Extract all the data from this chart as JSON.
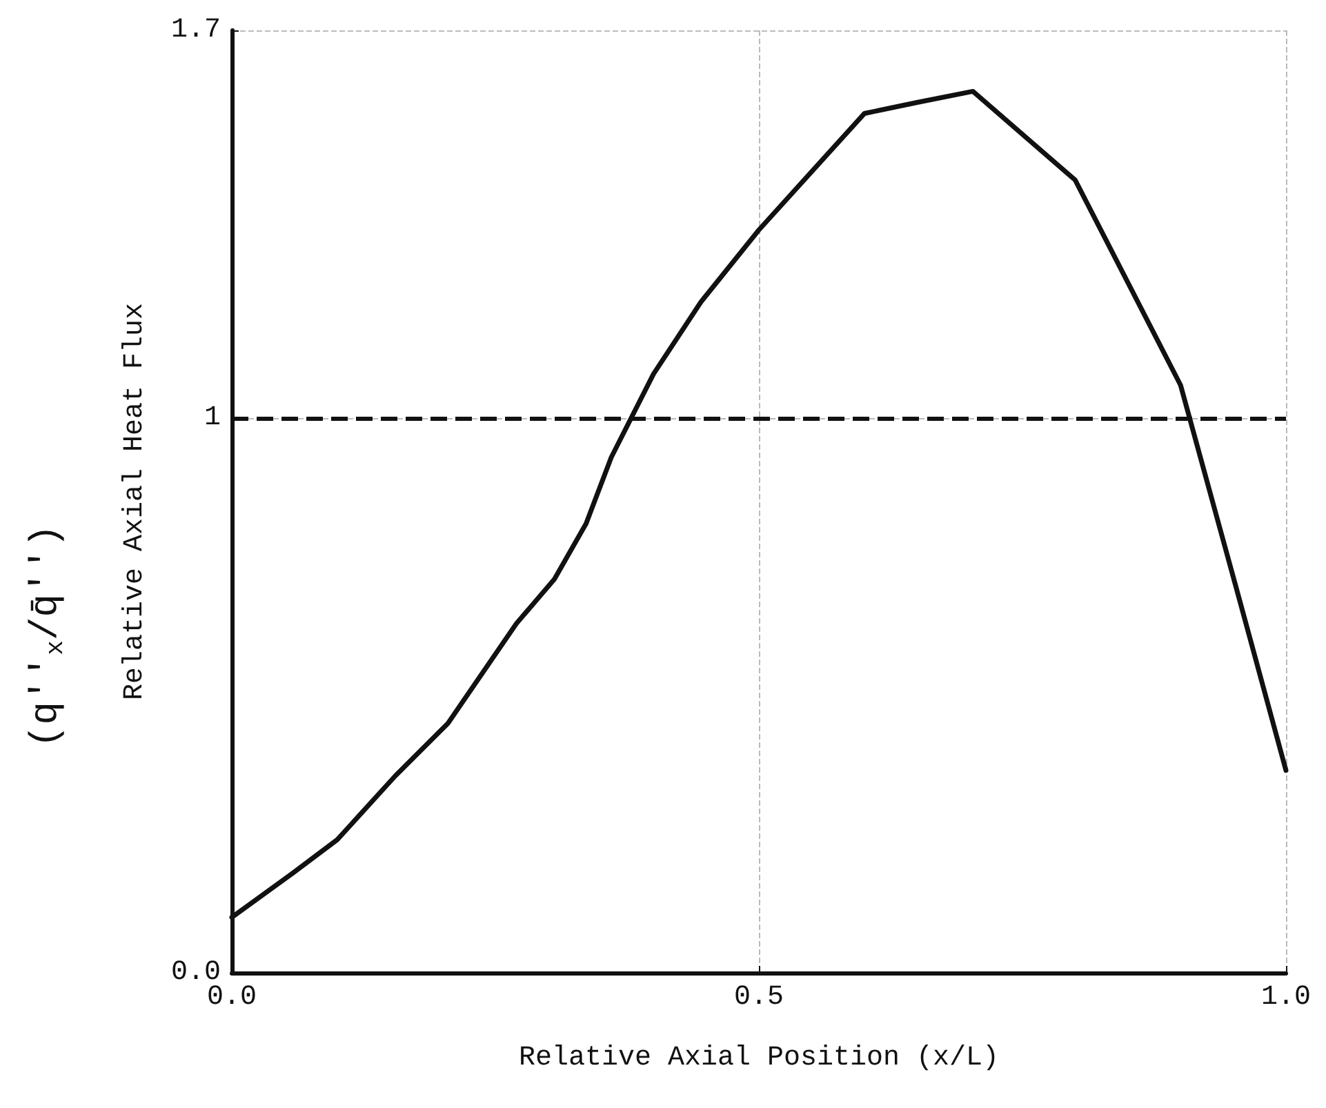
{
  "chart_data": {
    "type": "line",
    "xlabel": "Relative Axial Position (x/L)",
    "ylabel": "Relative Axial Heat Flux",
    "annotations": [
      "(q''$_{x}$/q̄'')"
    ],
    "x": [
      0,
      0.058,
      0.1,
      0.155,
      0.205,
      0.27,
      0.306,
      0.336,
      0.36,
      0.4,
      0.445,
      0.5,
      0.6,
      0.65,
      0.703,
      0.8,
      0.846,
      0.9,
      0.952,
      1.0
    ],
    "series": [
      {
        "color": "#111111",
        "values": [
          0.1,
          0.18,
          0.24,
          0.355,
          0.45,
          0.63,
          0.71,
          0.81,
          0.93,
          1.08,
          1.21,
          1.34,
          1.55,
          1.57,
          1.59,
          1.43,
          1.26,
          1.06,
          0.7,
          0.365
        ]
      }
    ],
    "xlim": [
      0,
      1
    ],
    "xticks": [
      {
        "value": 0,
        "label": "0.0"
      },
      {
        "value": 0.5,
        "label": "0.5"
      },
      {
        "value": 1,
        "label": "1.0"
      }
    ],
    "ylim": [
      0,
      1.7
    ],
    "yticks": [
      {
        "value": 0,
        "label": "0.0"
      },
      1,
      1.7
    ],
    "ref_lines": [
      {
        "axis": "y",
        "value": 1,
        "color": "#111111",
        "line_style": "dashed"
      }
    ],
    "grid": true,
    "marker": "none",
    "line_style": "solid"
  }
}
